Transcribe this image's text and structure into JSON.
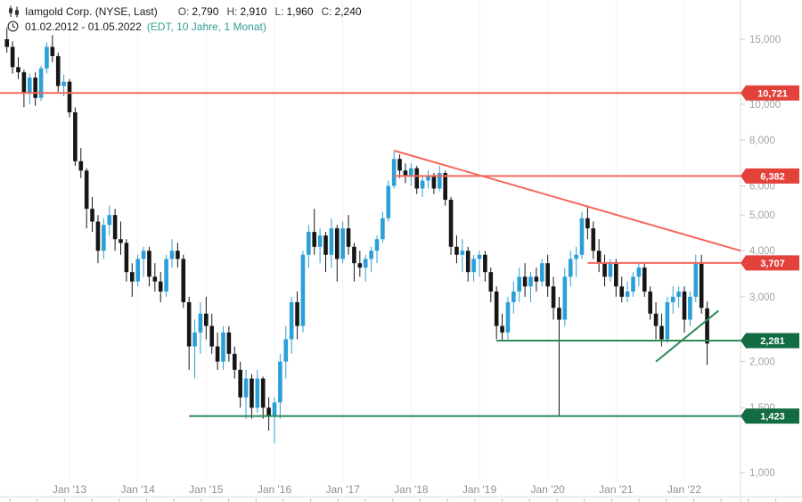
{
  "header": {
    "title": "Iamgold Corp. (NYSE, Last)",
    "ohlc": {
      "o_label": "O:",
      "o": "2,790",
      "h_label": "H:",
      "h": "2,910",
      "l_label": "L:",
      "l": "1,960",
      "c_label": "C:",
      "c": "2,240"
    },
    "date_range": "01.02.2012 - 01.05.2022",
    "timeframe": "(EDT, 10 Jahre, 1 Monat)"
  },
  "chart_data": {
    "type": "candlestick",
    "scale": "log",
    "title": "Iamgold Corp. (NYSE, Last) monthly candles, Feb 2012 - May 2022",
    "colors": {
      "up": "#2b9fd8",
      "down": "#161616",
      "background": "#ffffff"
    },
    "y_axis": {
      "side": "right",
      "range": [
        1.0,
        16.5
      ],
      "ticks": [
        {
          "v": 15,
          "label": "15,000"
        },
        {
          "v": 10,
          "label": "10,000"
        },
        {
          "v": 8,
          "label": "8,000"
        },
        {
          "v": 6,
          "label": "6,000"
        },
        {
          "v": 5,
          "label": "5,000"
        },
        {
          "v": 4,
          "label": "4,000"
        },
        {
          "v": 3,
          "label": "3,000"
        },
        {
          "v": 2,
          "label": "2,000"
        },
        {
          "v": 1.5,
          "label": "1,500"
        },
        {
          "v": 1,
          "label": "1,000"
        }
      ]
    },
    "x_axis": {
      "labels": [
        "Jan '13",
        "Jan '14",
        "Jan '15",
        "Jan '16",
        "Jan '17",
        "Jan '18",
        "Jan '19",
        "Jan '20",
        "Jan '21",
        "Jan '22"
      ],
      "month_indices": [
        11,
        23,
        35,
        47,
        59,
        71,
        83,
        95,
        107,
        119
      ]
    },
    "candle_format": [
      "month",
      "open",
      "high",
      "low",
      "close"
    ],
    "candles": [
      [
        "2012-02",
        15.0,
        16.1,
        13.8,
        14.3
      ],
      [
        "2012-03",
        14.3,
        14.8,
        12.1,
        12.6
      ],
      [
        "2012-04",
        12.6,
        13.4,
        11.7,
        12.2
      ],
      [
        "2012-05",
        12.2,
        12.4,
        9.8,
        10.7
      ],
      [
        "2012-06",
        10.7,
        12.1,
        10.0,
        11.8
      ],
      [
        "2012-07",
        11.8,
        12.2,
        9.9,
        10.4
      ],
      [
        "2012-08",
        10.4,
        12.7,
        10.2,
        12.5
      ],
      [
        "2012-09",
        12.5,
        14.7,
        12.1,
        14.3
      ],
      [
        "2012-10",
        14.3,
        15.4,
        13.0,
        13.5
      ],
      [
        "2012-11",
        13.5,
        13.8,
        10.8,
        11.2
      ],
      [
        "2012-12",
        11.2,
        12.0,
        10.5,
        11.5
      ],
      [
        "2013-01",
        11.5,
        11.7,
        9.2,
        9.5
      ],
      [
        "2013-02",
        9.5,
        9.8,
        6.8,
        7.0
      ],
      [
        "2013-03",
        7.0,
        7.6,
        6.3,
        6.6
      ],
      [
        "2013-04",
        6.6,
        6.7,
        4.6,
        5.2
      ],
      [
        "2013-05",
        5.2,
        5.6,
        4.5,
        4.8
      ],
      [
        "2013-06",
        4.8,
        5.0,
        3.7,
        4.0
      ],
      [
        "2013-07",
        4.0,
        4.9,
        3.8,
        4.7
      ],
      [
        "2013-08",
        4.7,
        5.3,
        4.4,
        5.0
      ],
      [
        "2013-09",
        5.0,
        5.2,
        4.0,
        4.3
      ],
      [
        "2013-10",
        4.3,
        4.8,
        3.9,
        4.2
      ],
      [
        "2013-11",
        4.2,
        4.3,
        3.3,
        3.5
      ],
      [
        "2013-12",
        3.5,
        3.7,
        3.0,
        3.3
      ],
      [
        "2014-01",
        3.3,
        3.9,
        3.2,
        3.8
      ],
      [
        "2014-02",
        3.8,
        4.1,
        3.4,
        4.0
      ],
      [
        "2014-03",
        4.0,
        4.1,
        3.2,
        3.4
      ],
      [
        "2014-04",
        3.4,
        3.7,
        3.1,
        3.3
      ],
      [
        "2014-05",
        3.3,
        3.5,
        2.9,
        3.1
      ],
      [
        "2014-06",
        3.1,
        3.9,
        3.0,
        3.8
      ],
      [
        "2014-07",
        3.8,
        4.3,
        3.6,
        4.0
      ],
      [
        "2014-08",
        4.0,
        4.2,
        3.6,
        3.8
      ],
      [
        "2014-09",
        3.8,
        3.9,
        2.8,
        2.9
      ],
      [
        "2014-10",
        2.9,
        3.0,
        1.9,
        2.2
      ],
      [
        "2014-11",
        2.2,
        2.6,
        1.8,
        2.4
      ],
      [
        "2014-12",
        2.4,
        2.9,
        2.1,
        2.7
      ],
      [
        "2015-01",
        2.7,
        3.0,
        2.3,
        2.5
      ],
      [
        "2015-02",
        2.5,
        2.7,
        2.1,
        2.2
      ],
      [
        "2015-03",
        2.2,
        2.4,
        1.9,
        2.0
      ],
      [
        "2015-04",
        2.0,
        2.5,
        1.9,
        2.4
      ],
      [
        "2015-05",
        2.4,
        2.5,
        2.0,
        2.1
      ],
      [
        "2015-06",
        2.1,
        2.2,
        1.8,
        1.9
      ],
      [
        "2015-07",
        1.9,
        2.0,
        1.5,
        1.6
      ],
      [
        "2015-08",
        1.6,
        1.9,
        1.4,
        1.8
      ],
      [
        "2015-09",
        1.8,
        1.85,
        1.4,
        1.5
      ],
      [
        "2015-10",
        1.5,
        1.9,
        1.45,
        1.8
      ],
      [
        "2015-11",
        1.8,
        1.82,
        1.4,
        1.5
      ],
      [
        "2015-12",
        1.5,
        1.6,
        1.3,
        1.42
      ],
      [
        "2016-01",
        1.42,
        1.6,
        1.2,
        1.55
      ],
      [
        "2016-02",
        1.55,
        2.1,
        1.4,
        2.0
      ],
      [
        "2016-03",
        2.0,
        2.5,
        1.8,
        2.3
      ],
      [
        "2016-04",
        2.3,
        3.0,
        2.1,
        2.9
      ],
      [
        "2016-05",
        2.9,
        3.1,
        2.3,
        2.5
      ],
      [
        "2016-06",
        2.5,
        4.0,
        2.4,
        3.9
      ],
      [
        "2016-07",
        3.9,
        4.7,
        3.6,
        4.5
      ],
      [
        "2016-08",
        4.5,
        5.2,
        3.9,
        4.1
      ],
      [
        "2016-09",
        4.1,
        4.6,
        3.7,
        4.4
      ],
      [
        "2016-10",
        4.4,
        4.5,
        3.5,
        3.9
      ],
      [
        "2016-11",
        3.9,
        4.9,
        3.6,
        4.6
      ],
      [
        "2016-12",
        4.6,
        4.7,
        3.3,
        3.8
      ],
      [
        "2017-01",
        3.8,
        4.8,
        3.7,
        4.6
      ],
      [
        "2017-02",
        4.6,
        5.0,
        3.9,
        4.1
      ],
      [
        "2017-03",
        4.1,
        4.2,
        3.3,
        3.7
      ],
      [
        "2017-04",
        3.7,
        4.0,
        3.4,
        3.6
      ],
      [
        "2017-05",
        3.6,
        3.9,
        3.3,
        3.8
      ],
      [
        "2017-06",
        3.8,
        4.1,
        3.5,
        4.0
      ],
      [
        "2017-07",
        4.0,
        4.4,
        3.7,
        4.3
      ],
      [
        "2017-08",
        4.3,
        5.1,
        4.2,
        4.9
      ],
      [
        "2017-09",
        4.9,
        6.2,
        4.8,
        6.0
      ],
      [
        "2017-10",
        6.0,
        7.48,
        5.9,
        7.1
      ],
      [
        "2017-11",
        7.1,
        7.3,
        6.3,
        6.6
      ],
      [
        "2017-12",
        6.6,
        6.9,
        6.1,
        6.4
      ],
      [
        "2018-01",
        6.4,
        6.9,
        6.0,
        6.7
      ],
      [
        "2018-02",
        6.7,
        6.8,
        5.7,
        5.9
      ],
      [
        "2018-03",
        5.9,
        6.4,
        5.6,
        6.2
      ],
      [
        "2018-04",
        6.2,
        6.6,
        5.9,
        6.4
      ],
      [
        "2018-05",
        6.4,
        6.5,
        5.7,
        5.9
      ],
      [
        "2018-06",
        5.9,
        6.8,
        5.8,
        6.5
      ],
      [
        "2018-07",
        6.5,
        6.6,
        5.3,
        5.5
      ],
      [
        "2018-08",
        5.5,
        5.6,
        3.9,
        4.1
      ],
      [
        "2018-09",
        4.1,
        4.4,
        3.7,
        3.9
      ],
      [
        "2018-10",
        3.9,
        4.3,
        3.5,
        4.0
      ],
      [
        "2018-11",
        4.0,
        4.1,
        3.3,
        3.5
      ],
      [
        "2018-12",
        3.5,
        3.9,
        3.3,
        3.8
      ],
      [
        "2019-01",
        3.8,
        4.0,
        3.4,
        3.9
      ],
      [
        "2019-02",
        3.9,
        4.0,
        3.3,
        3.5
      ],
      [
        "2019-03",
        3.5,
        3.6,
        2.9,
        3.1
      ],
      [
        "2019-04",
        3.1,
        3.2,
        2.3,
        2.5
      ],
      [
        "2019-05",
        2.5,
        2.7,
        2.28,
        2.4
      ],
      [
        "2019-06",
        2.4,
        3.0,
        2.3,
        2.9
      ],
      [
        "2019-07",
        2.9,
        3.3,
        2.7,
        3.1
      ],
      [
        "2019-08",
        3.1,
        3.6,
        2.9,
        3.4
      ],
      [
        "2019-09",
        3.4,
        3.7,
        3.0,
        3.2
      ],
      [
        "2019-10",
        3.2,
        3.5,
        2.9,
        3.4
      ],
      [
        "2019-11",
        3.4,
        3.6,
        3.1,
        3.3
      ],
      [
        "2019-12",
        3.3,
        3.8,
        3.2,
        3.7
      ],
      [
        "2020-01",
        3.7,
        3.9,
        3.0,
        3.2
      ],
      [
        "2020-02",
        3.2,
        3.4,
        2.6,
        2.8
      ],
      [
        "2020-03",
        2.8,
        3.0,
        1.42,
        2.6
      ],
      [
        "2020-04",
        2.6,
        3.6,
        2.5,
        3.4
      ],
      [
        "2020-05",
        3.4,
        4.0,
        3.2,
        3.8
      ],
      [
        "2020-06",
        3.8,
        4.1,
        3.4,
        3.9
      ],
      [
        "2020-07",
        3.9,
        5.1,
        3.8,
        4.9
      ],
      [
        "2020-08",
        4.9,
        5.3,
        4.3,
        4.6
      ],
      [
        "2020-09",
        4.6,
        4.8,
        3.8,
        4.0
      ],
      [
        "2020-10",
        4.0,
        4.3,
        3.5,
        3.7
      ],
      [
        "2020-11",
        3.7,
        3.9,
        3.2,
        3.4
      ],
      [
        "2020-12",
        3.4,
        3.8,
        3.3,
        3.7
      ],
      [
        "2021-01",
        3.7,
        3.8,
        3.0,
        3.2
      ],
      [
        "2021-02",
        3.2,
        3.4,
        2.9,
        3.0
      ],
      [
        "2021-03",
        3.0,
        3.3,
        2.9,
        3.1
      ],
      [
        "2021-04",
        3.1,
        3.5,
        3.0,
        3.4
      ],
      [
        "2021-05",
        3.4,
        3.7,
        3.2,
        3.6
      ],
      [
        "2021-06",
        3.6,
        3.7,
        3.0,
        3.1
      ],
      [
        "2021-07",
        3.1,
        3.2,
        2.6,
        2.7
      ],
      [
        "2021-08",
        2.7,
        2.9,
        2.3,
        2.5
      ],
      [
        "2021-09",
        2.5,
        2.7,
        2.2,
        2.3
      ],
      [
        "2021-10",
        2.3,
        3.0,
        2.25,
        2.9
      ],
      [
        "2021-11",
        2.9,
        3.2,
        2.7,
        3.0
      ],
      [
        "2021-12",
        3.0,
        3.2,
        2.8,
        3.1
      ],
      [
        "2022-01",
        3.1,
        3.2,
        2.4,
        2.6
      ],
      [
        "2022-02",
        2.6,
        3.1,
        2.5,
        3.0
      ],
      [
        "2022-03",
        3.0,
        3.9,
        2.9,
        3.7
      ],
      [
        "2022-04",
        3.7,
        3.9,
        2.7,
        2.8
      ],
      [
        "2022-05",
        2.79,
        2.91,
        1.96,
        2.24
      ]
    ],
    "levels": [
      {
        "name": "resistance-line-10721",
        "label": "10,721",
        "value": 10.721,
        "from": "left",
        "line_color": "#f4685d",
        "badge_color": "#e2423a"
      },
      {
        "name": "resistance-line-6382",
        "label": "6,382",
        "value": 6.382,
        "from": "2017-10",
        "line_color": "#f4685d",
        "badge_color": "#e2423a"
      },
      {
        "name": "resistance-line-3707",
        "label": "3,707",
        "value": 3.707,
        "from": "2020-08",
        "line_color": "#f4685d",
        "badge_color": "#e2423a"
      },
      {
        "name": "support-line-2281",
        "label": "2,281",
        "value": 2.281,
        "from": "2019-04",
        "line_color": "#2e8a57",
        "badge_color": "#146c45"
      },
      {
        "name": "support-line-1423",
        "label": "1,423",
        "value": 1.423,
        "from": "2014-10",
        "line_color": "#2e8a57",
        "badge_color": "#146c45"
      }
    ],
    "trendlines": [
      {
        "name": "downtrend-line",
        "from": "2017-10",
        "v1": 7.48,
        "to": "edge",
        "v2": 4.0,
        "color": "#f4685d"
      },
      {
        "name": "uptrend-line",
        "from": "2021-08",
        "v1": 2.0,
        "to": "2022-07",
        "v2": 2.75,
        "color": "#2e8a57"
      }
    ]
  }
}
